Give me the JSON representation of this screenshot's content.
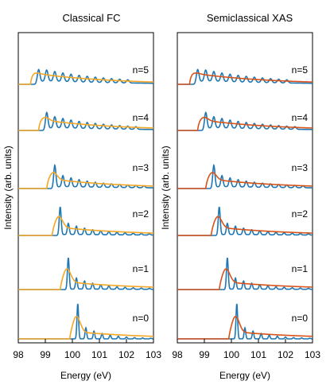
{
  "figure": {
    "ylabel": "Intensity (arb. units)",
    "xlabel": "Energy (eV)"
  },
  "colors": {
    "blue": "#1f77b4",
    "orange": "#f5a623",
    "red": "#d95319"
  },
  "chart_data": [
    {
      "type": "line",
      "title": "Classical FC",
      "xlabel": "Energy (eV)",
      "ylabel": "Intensity (arb. units)",
      "xlim": [
        98,
        103
      ],
      "xticks": [
        "98",
        "99",
        "100",
        "101",
        "102",
        "103"
      ],
      "traces": [
        {
          "label": "n=5",
          "onset": 98.7,
          "sharp": 0.05,
          "series": [
            {
              "color": "blue",
              "role": "reference"
            },
            {
              "color": "orange",
              "role": "classical"
            }
          ]
        },
        {
          "label": "n=4",
          "onset": 99.0,
          "sharp": 0.2,
          "series": [
            {
              "color": "blue",
              "role": "reference"
            },
            {
              "color": "orange",
              "role": "classical"
            }
          ]
        },
        {
          "label": "n=3",
          "onset": 99.3,
          "sharp": 0.45,
          "series": [
            {
              "color": "blue",
              "role": "reference"
            },
            {
              "color": "orange",
              "role": "classical"
            }
          ]
        },
        {
          "label": "n=2",
          "onset": 99.5,
          "sharp": 0.7,
          "series": [
            {
              "color": "blue",
              "role": "reference"
            },
            {
              "color": "orange",
              "role": "classical"
            }
          ]
        },
        {
          "label": "n=1",
          "onset": 99.8,
          "sharp": 0.85,
          "series": [
            {
              "color": "blue",
              "role": "reference"
            },
            {
              "color": "orange",
              "role": "classical"
            }
          ]
        },
        {
          "label": "n=0",
          "onset": 100.15,
          "sharp": 1.0,
          "series": [
            {
              "color": "blue",
              "role": "reference"
            },
            {
              "color": "orange",
              "role": "classical"
            }
          ]
        }
      ]
    },
    {
      "type": "line",
      "title": "Semiclassical XAS",
      "xlabel": "Energy (eV)",
      "ylabel": "Intensity (arb. units)",
      "xlim": [
        98,
        103
      ],
      "xticks": [
        "98",
        "99",
        "100",
        "101",
        "102",
        "103"
      ],
      "traces": [
        {
          "label": "n=5",
          "onset": 98.7,
          "sharp": 0.05,
          "series": [
            {
              "color": "blue",
              "role": "reference"
            },
            {
              "color": "red",
              "role": "semiclassical"
            }
          ]
        },
        {
          "label": "n=4",
          "onset": 99.0,
          "sharp": 0.2,
          "series": [
            {
              "color": "blue",
              "role": "reference"
            },
            {
              "color": "red",
              "role": "semiclassical"
            }
          ]
        },
        {
          "label": "n=3",
          "onset": 99.3,
          "sharp": 0.45,
          "series": [
            {
              "color": "blue",
              "role": "reference"
            },
            {
              "color": "red",
              "role": "semiclassical"
            }
          ]
        },
        {
          "label": "n=2",
          "onset": 99.5,
          "sharp": 0.7,
          "series": [
            {
              "color": "blue",
              "role": "reference"
            },
            {
              "color": "red",
              "role": "semiclassical"
            }
          ]
        },
        {
          "label": "n=1",
          "onset": 99.8,
          "sharp": 0.85,
          "series": [
            {
              "color": "blue",
              "role": "reference"
            },
            {
              "color": "red",
              "role": "semiclassical"
            }
          ]
        },
        {
          "label": "n=0",
          "onset": 100.15,
          "sharp": 1.0,
          "series": [
            {
              "color": "blue",
              "role": "reference"
            },
            {
              "color": "red",
              "role": "semiclassical"
            }
          ]
        }
      ]
    }
  ]
}
